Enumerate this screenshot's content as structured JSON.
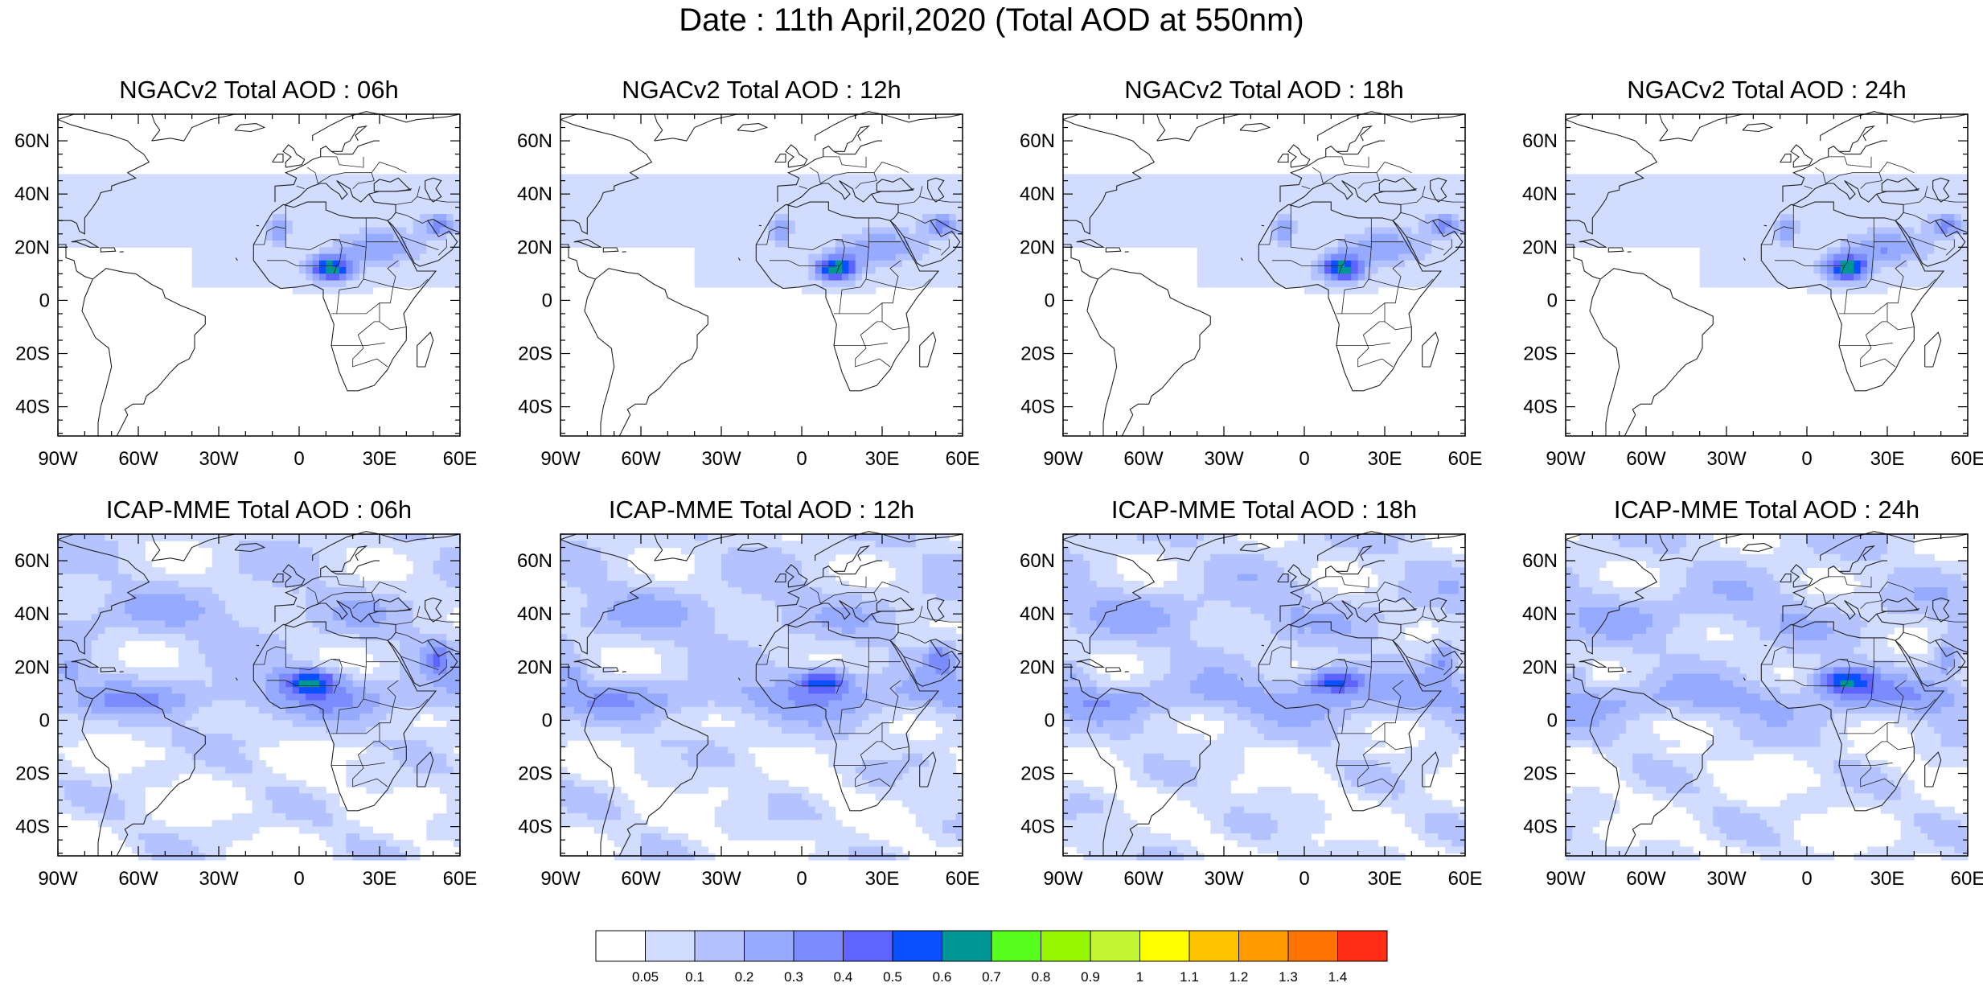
{
  "title": "Date : 11th April,2020 (Total AOD at 550nm)",
  "axes": {
    "lon_labels": [
      "90W",
      "60W",
      "30W",
      "0",
      "30E",
      "60E"
    ],
    "lat_labels": [
      "60N",
      "40N",
      "20N",
      "0",
      "20S",
      "40S"
    ],
    "lon_range": [
      -90,
      60
    ],
    "lat_range": [
      -51,
      70
    ]
  },
  "panels": [
    {
      "title": "NGACv2 Total AOD : 06h",
      "model": "NGACv2",
      "hour": 6
    },
    {
      "title": "NGACv2 Total AOD : 12h",
      "model": "NGACv2",
      "hour": 12
    },
    {
      "title": "NGACv2 Total AOD : 18h",
      "model": "NGACv2",
      "hour": 18
    },
    {
      "title": "NGACv2 Total AOD : 24h",
      "model": "NGACv2",
      "hour": 24
    },
    {
      "title": "ICAP-MME Total AOD : 06h",
      "model": "ICAP-MME",
      "hour": 6
    },
    {
      "title": "ICAP-MME Total AOD : 12h",
      "model": "ICAP-MME",
      "hour": 12
    },
    {
      "title": "ICAP-MME Total AOD : 18h",
      "model": "ICAP-MME",
      "hour": 18
    },
    {
      "title": "ICAP-MME Total AOD : 24h",
      "model": "ICAP-MME",
      "hour": 24
    }
  ],
  "colorbar": {
    "labels": [
      "0.05",
      "0.1",
      "0.2",
      "0.3",
      "0.4",
      "0.5",
      "0.6",
      "0.7",
      "0.8",
      "0.9",
      "1",
      "1.1",
      "1.2",
      "1.3",
      "1.4"
    ],
    "colors": [
      "#ffffff",
      "#d2dcff",
      "#b4c3ff",
      "#96aaff",
      "#7b8cff",
      "#5f64ff",
      "#0a50ff",
      "#009696",
      "#58ff1e",
      "#96f500",
      "#c3f532",
      "#ffff00",
      "#ffc400",
      "#ff9b00",
      "#ff7300",
      "#ff2d14"
    ]
  }
}
